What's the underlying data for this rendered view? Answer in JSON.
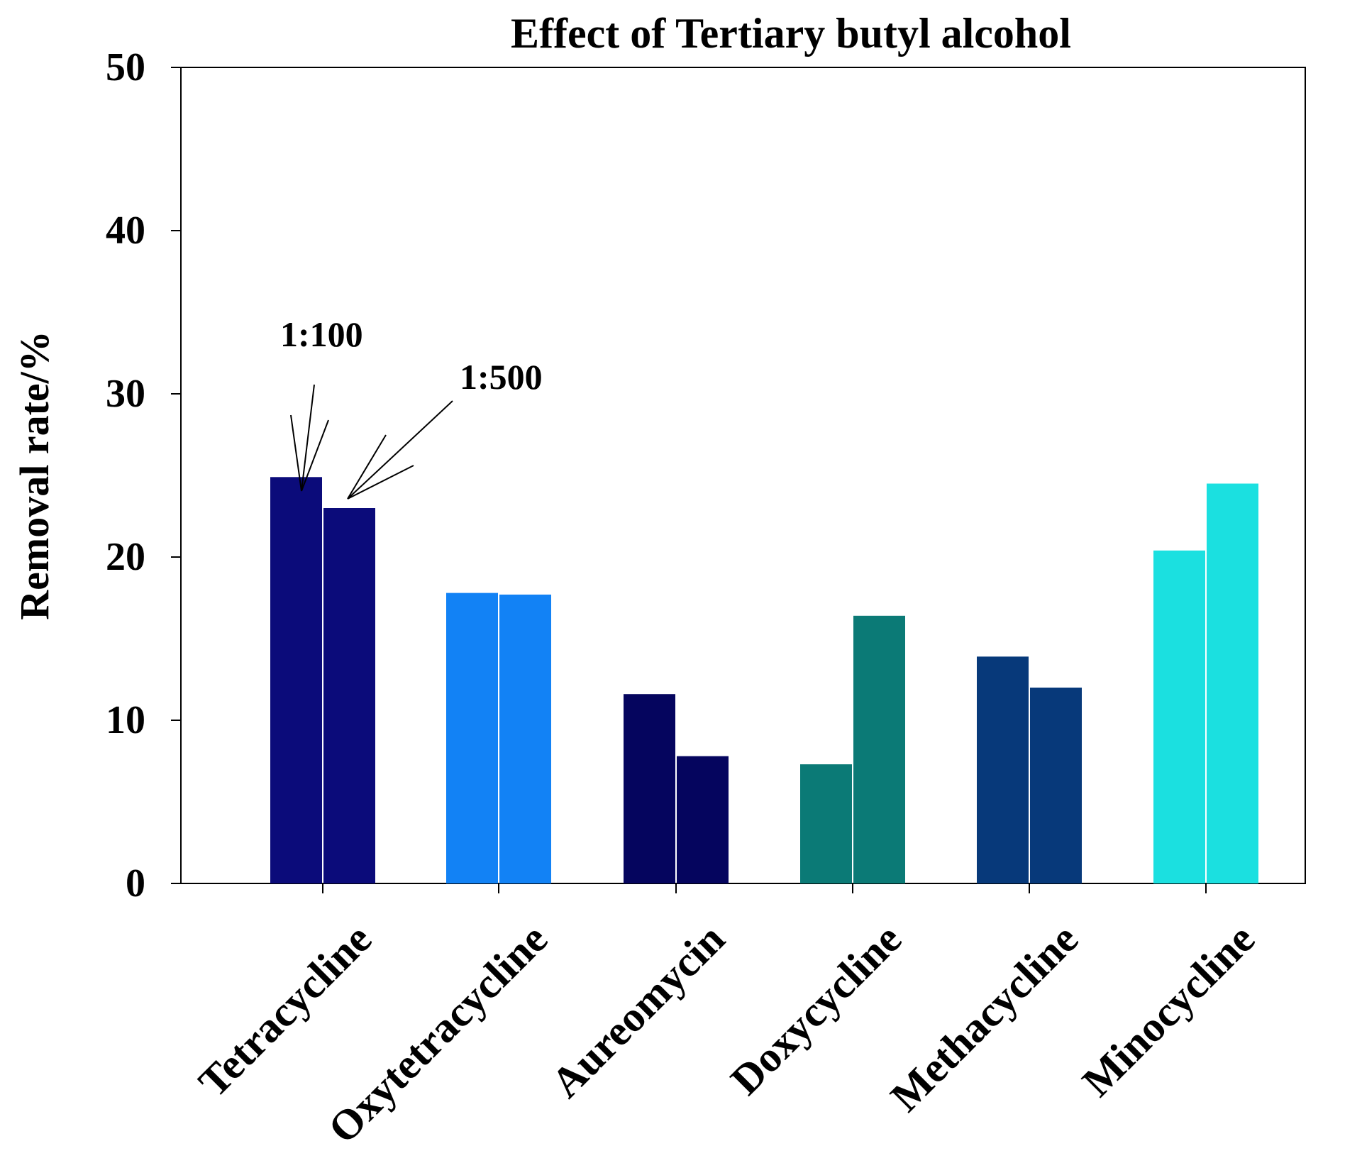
{
  "chart_data": {
    "type": "bar",
    "title": "Effect of  Tertiary butyl alcohol",
    "xlabel": "",
    "ylabel": "Removal rate/%",
    "ylim": [
      0,
      50
    ],
    "yticks": [
      "0",
      "10",
      "20",
      "30",
      "40",
      "50"
    ],
    "categories": [
      "Tetracycline",
      "Oxytetracycline",
      "Aureomycin",
      "Doxycycline",
      "Methacycline",
      "Minocycline"
    ],
    "series": [
      {
        "name": "1:100",
        "values": [
          24.9,
          17.8,
          11.6,
          7.3,
          13.9,
          20.4
        ],
        "colors": [
          "#0b0b7a",
          "#1282f5",
          "#05055e",
          "#0b7a76",
          "#07397a",
          "#1be0e0"
        ]
      },
      {
        "name": "1:500",
        "values": [
          23.0,
          17.7,
          7.8,
          16.4,
          12.0,
          24.5
        ],
        "colors": [
          "#0b0b7a",
          "#1282f5",
          "#05055e",
          "#0b7a76",
          "#07397a",
          "#1be0e0"
        ]
      }
    ],
    "annotations": [
      "1:100",
      "1:500"
    ],
    "grid": false,
    "legend": "none"
  }
}
